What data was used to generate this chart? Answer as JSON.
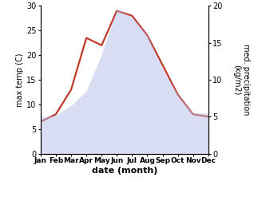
{
  "months": [
    "Jan",
    "Feb",
    "Mar",
    "Apr",
    "May",
    "Jun",
    "Jul",
    "Aug",
    "Sep",
    "Oct",
    "Nov",
    "Dec"
  ],
  "month_x": [
    1,
    2,
    3,
    4,
    5,
    6,
    7,
    8,
    9,
    10,
    11,
    12
  ],
  "temp": [
    6.5,
    8.0,
    13.0,
    23.5,
    22.0,
    29.0,
    28.0,
    24.0,
    18.0,
    12.0,
    8.0,
    7.5
  ],
  "precip": [
    5.0,
    5.2,
    6.5,
    8.5,
    13.5,
    19.5,
    18.5,
    16.0,
    11.5,
    8.0,
    5.5,
    5.5
  ],
  "temp_color": "#c0392b",
  "precip_color": "#b3bde8",
  "temp_ylim": [
    0,
    30
  ],
  "precip_ylim": [
    0,
    20
  ],
  "temp_yticks": [
    0,
    5,
    10,
    15,
    20,
    25,
    30
  ],
  "precip_yticks": [
    0,
    5,
    10,
    15,
    20
  ],
  "ylabel_left": "max temp (C)",
  "ylabel_right": "med. precipitation\n(kg/m2)",
  "xlabel": "date (month)",
  "bg_color": "#ffffff",
  "temp_linewidth": 1.6,
  "precip_alpha": 0.5,
  "tick_labelsize": 7,
  "xlabel_fontsize": 8,
  "ylabel_fontsize": 7
}
